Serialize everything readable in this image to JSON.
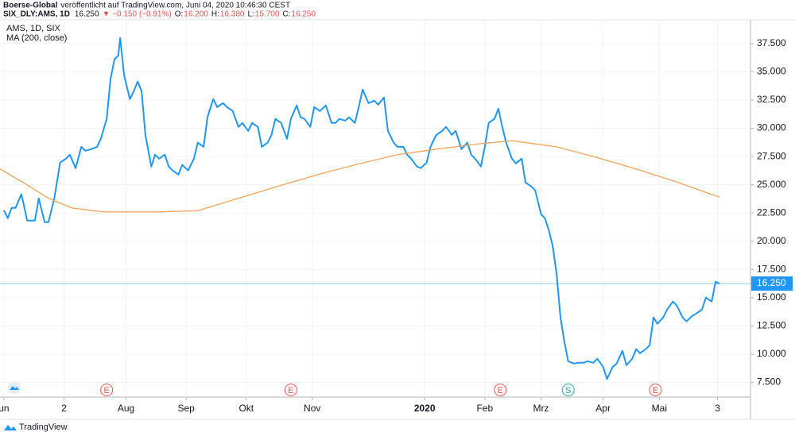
{
  "header": {
    "line1_author": "Boerse-Global",
    "line1_rest": "veröffentlicht auf TradingView.com, Juni 04, 2020 10:46:30 CEST",
    "symbol": "SIX_DLY:AMS, 1D",
    "price": "16.250",
    "change": "▼ −0.150 (−0.91%)",
    "ohlc": [
      {
        "label": "O:",
        "value": "16.200"
      },
      {
        "label": "H:",
        "value": "16.380"
      },
      {
        "label": "L:",
        "value": "15.700"
      },
      {
        "label": "C:",
        "value": "16.250"
      }
    ]
  },
  "footer": {
    "brand": "TradingView"
  },
  "chart_data": {
    "type": "line",
    "xlim": [
      0,
      387
    ],
    "ylim": [
      6.2,
      39.6
    ],
    "xticks": [
      {
        "value": 2,
        "label": "un"
      },
      {
        "value": 33,
        "label": "2"
      },
      {
        "value": 65,
        "label": "Aug"
      },
      {
        "value": 96,
        "label": "Sep"
      },
      {
        "value": 127,
        "label": "Okt"
      },
      {
        "value": 161,
        "label": "Nov"
      },
      {
        "value": 219,
        "label": "2020"
      },
      {
        "value": 250,
        "label": "Feb"
      },
      {
        "value": 279,
        "label": "Mrz"
      },
      {
        "value": 311,
        "label": "Apr"
      },
      {
        "value": 340,
        "label": "Mai"
      },
      {
        "value": 370,
        "label": "3"
      }
    ],
    "yticks": [
      {
        "value": 7.5,
        "label": "7.500"
      },
      {
        "value": 10,
        "label": "10.000"
      },
      {
        "value": 12.5,
        "label": "12.500"
      },
      {
        "value": 15,
        "label": "15.000"
      },
      {
        "value": 17.5,
        "label": "17.500"
      },
      {
        "value": 20,
        "label": "20.000"
      },
      {
        "value": 22.5,
        "label": "22.500"
      },
      {
        "value": 25,
        "label": "25.000"
      },
      {
        "value": 27.5,
        "label": "27.500"
      },
      {
        "value": 30,
        "label": "30.000"
      },
      {
        "value": 32.5,
        "label": "32.500"
      },
      {
        "value": 35,
        "label": "35.000"
      },
      {
        "value": 37.5,
        "label": "37.500"
      }
    ],
    "grid": true,
    "series": [
      {
        "name": "AMS, 1D, SIX",
        "color": "#2196f3",
        "x": [
          2,
          4,
          6,
          8,
          11,
          12,
          14,
          18,
          20,
          23,
          25,
          28,
          31,
          34,
          36,
          39,
          42,
          44,
          47,
          50,
          52,
          55,
          57,
          59,
          61,
          62,
          64,
          67,
          69,
          71,
          73,
          75,
          78,
          80,
          82,
          85,
          87,
          89,
          92,
          94,
          97,
          100,
          102,
          105,
          107,
          108,
          110,
          112,
          115,
          117,
          120,
          123,
          125,
          128,
          130,
          133,
          135,
          138,
          140,
          142,
          145,
          148,
          150,
          153,
          155,
          157,
          160,
          162,
          165,
          168,
          171,
          173,
          175,
          178,
          180,
          183,
          185,
          187,
          190,
          193,
          195,
          198,
          200,
          203,
          205,
          208,
          210,
          212,
          215,
          217,
          220,
          222,
          225,
          228,
          230,
          233,
          235,
          238,
          241,
          243,
          245,
          248,
          250,
          252,
          255,
          257,
          259,
          261,
          264,
          266,
          269,
          271,
          274,
          276,
          279,
          281,
          283,
          285,
          287,
          289,
          291,
          293,
          296,
          298,
          301,
          303,
          306,
          308,
          311,
          313,
          316,
          318,
          321,
          323,
          326,
          328,
          330,
          333,
          335,
          337,
          339,
          342,
          344,
          347,
          349,
          352,
          354,
          357,
          359,
          362,
          364,
          367,
          369,
          371
        ],
        "values": [
          22.74,
          22.04,
          22.95,
          22.95,
          24.15,
          23.44,
          21.83,
          21.83,
          23.79,
          21.69,
          21.69,
          23.79,
          26.96,
          27.31,
          27.66,
          26.47,
          28.36,
          28.01,
          28.15,
          28.36,
          29.07,
          30.83,
          34.34,
          36.1,
          36.45,
          37.99,
          34.69,
          32.58,
          33.29,
          34.13,
          33.29,
          29.42,
          26.61,
          27.66,
          27.31,
          27.66,
          26.61,
          26.26,
          25.9,
          26.75,
          26.26,
          27.31,
          28.72,
          28.36,
          30.97,
          31.53,
          32.58,
          31.88,
          32.23,
          31.88,
          31.53,
          30.12,
          30.47,
          29.77,
          30.47,
          30.12,
          28.36,
          28.72,
          29.42,
          30.83,
          30.47,
          29.07,
          30.83,
          32.02,
          30.97,
          30.83,
          30.12,
          31.88,
          31.53,
          32.02,
          30.47,
          30.47,
          30.83,
          30.68,
          30.97,
          30.47,
          31.88,
          33.43,
          32.23,
          32.44,
          32.09,
          32.72,
          29.77,
          28.72,
          28.36,
          28.36,
          27.66,
          27.31,
          26.61,
          26.47,
          26.96,
          28.36,
          29.42,
          29.77,
          30.12,
          29.42,
          29.77,
          28.15,
          28.72,
          27.66,
          27.31,
          26.61,
          28.36,
          30.47,
          30.83,
          31.74,
          30.12,
          28.72,
          27.31,
          26.89,
          27.31,
          25.2,
          24.85,
          24.5,
          22.39,
          22.04,
          20.98,
          19.58,
          17.12,
          13.25,
          11.14,
          9.38,
          9.17,
          9.24,
          9.24,
          9.38,
          9.24,
          9.59,
          8.89,
          7.8,
          8.89,
          9.17,
          10.3,
          9.03,
          9.59,
          10.44,
          10.09,
          10.44,
          10.79,
          13.25,
          12.69,
          13.25,
          13.95,
          14.66,
          14.31,
          13.25,
          12.9,
          13.39,
          13.6,
          13.95,
          15.01,
          14.66,
          16.41,
          16.25
        ]
      },
      {
        "name": "MA (200, close)",
        "color": "#f7a35c",
        "x": [
          0,
          12,
          25,
          37,
          53,
          66,
          82,
          102,
          123,
          143,
          164,
          184,
          205,
          225,
          246,
          264,
          287,
          307,
          328,
          348,
          371
        ],
        "values": [
          26.4,
          25.2,
          23.8,
          22.95,
          22.6,
          22.6,
          22.6,
          22.7,
          23.8,
          24.85,
          25.9,
          26.8,
          27.66,
          28.15,
          28.6,
          28.9,
          28.36,
          27.45,
          26.4,
          25.3,
          23.9
        ]
      }
    ],
    "last_price": {
      "value": 16.25,
      "label": "16.250"
    },
    "events": [
      {
        "x": 55,
        "label": "E",
        "color": "#ef5350"
      },
      {
        "x": 150,
        "label": "E",
        "color": "#ef5350"
      },
      {
        "x": 258,
        "label": "E",
        "color": "#ef5350"
      },
      {
        "x": 293,
        "label": "S",
        "color": "#26a69a"
      },
      {
        "x": 338,
        "label": "E",
        "color": "#ef5350"
      }
    ]
  }
}
